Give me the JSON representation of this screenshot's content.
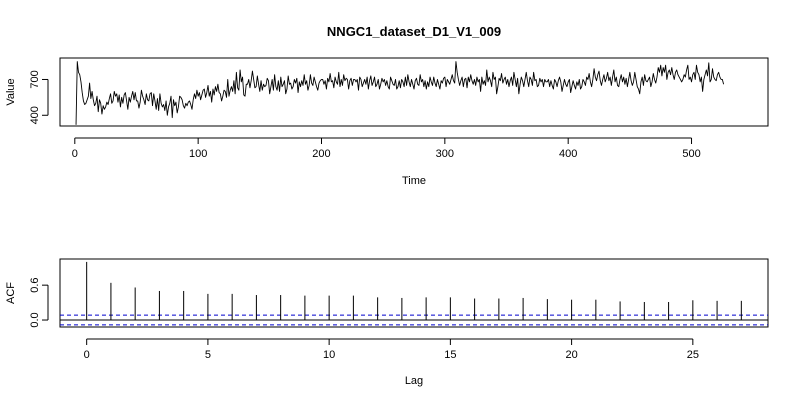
{
  "chart_data": [
    {
      "type": "line",
      "title": "NNGC1_dataset_D1_V1_009",
      "xlabel": "Time",
      "ylabel": "Value",
      "xlim": [
        -12,
        562
      ],
      "ylim": [
        310,
        880
      ],
      "x_ticks": [
        0,
        100,
        200,
        300,
        400,
        500
      ],
      "x_tick_labels": [
        "0",
        "100",
        "200",
        "300",
        "400",
        "500"
      ],
      "y_ticks": [
        400,
        700
      ],
      "y_tick_labels": [
        "400",
        "700"
      ],
      "series": [
        {
          "x_start": 1,
          "x_step": 1,
          "values": [
            320,
            850,
            760,
            740,
            680,
            590,
            520,
            490,
            500,
            530,
            560,
            670,
            540,
            600,
            530,
            480,
            500,
            560,
            430,
            530,
            500,
            410,
            480,
            450,
            470,
            510,
            490,
            540,
            580,
            500,
            520,
            600,
            560,
            580,
            510,
            570,
            470,
            550,
            500,
            570,
            590,
            520,
            450,
            550,
            510,
            560,
            600,
            530,
            590,
            520,
            520,
            460,
            510,
            610,
            560,
            530,
            490,
            580,
            530,
            520,
            580,
            590,
            480,
            580,
            520,
            450,
            540,
            440,
            580,
            500,
            470,
            490,
            440,
            520,
            400,
            470,
            500,
            560,
            380,
            530,
            480,
            510,
            420,
            470,
            560,
            550,
            530,
            480,
            460,
            500,
            480,
            510,
            520,
            490,
            450,
            530,
            580,
            540,
            610,
            560,
            590,
            530,
            570,
            610,
            620,
            550,
            590,
            650,
            560,
            600,
            510,
            620,
            570,
            640,
            600,
            660,
            590,
            580,
            520,
            560,
            610,
            600,
            550,
            700,
            560,
            610,
            640,
            600,
            690,
            580,
            760,
            630,
            610,
            780,
            680,
            720,
            570,
            560,
            660,
            660,
            700,
            630,
            690,
            770,
            700,
            630,
            640,
            730,
            660,
            600,
            690,
            610,
            660,
            640,
            650,
            710,
            690,
            580,
            640,
            700,
            610,
            740,
            640,
            610,
            690,
            600,
            720,
            640,
            660,
            690,
            580,
            620,
            730,
            660,
            670,
            620,
            640,
            700,
            670,
            710,
            590,
            680,
            640,
            690,
            650,
            740,
            660,
            690,
            610,
            650,
            740,
            670,
            650,
            720,
            680,
            640,
            610,
            670,
            690,
            700,
            700,
            660,
            690,
            620,
            710,
            680,
            750,
            680,
            690,
            630,
            720,
            680,
            660,
            760,
            640,
            700,
            650,
            740,
            690,
            710,
            700,
            620,
            690,
            710,
            650,
            700,
            700,
            680,
            700,
            610,
            720,
            700,
            640,
            670,
            700,
            660,
            720,
            620,
            690,
            730,
            650,
            680,
            720,
            640,
            660,
            700,
            620,
            660,
            710,
            680,
            700,
            650,
            690,
            640,
            620,
            720,
            690,
            660,
            650,
            700,
            620,
            640,
            690,
            630,
            700,
            680,
            640,
            720,
            650,
            740,
            680,
            640,
            700,
            660,
            620,
            690,
            710,
            660,
            650,
            740,
            680,
            700,
            640,
            690,
            620,
            680,
            640,
            720,
            680,
            650,
            720,
            670,
            640,
            700,
            660,
            620,
            690,
            670,
            710,
            720,
            640,
            700,
            680,
            660,
            700,
            740,
            690,
            670,
            850,
            760,
            700,
            650,
            690,
            720,
            640,
            700,
            710,
            630,
            720,
            680,
            740,
            690,
            660,
            700,
            650,
            720,
            680,
            700,
            600,
            720,
            660,
            690,
            650,
            780,
            680,
            720,
            690,
            640,
            760,
            700,
            720,
            580,
            640,
            710,
            690,
            750,
            670,
            700,
            720,
            660,
            700,
            640,
            690,
            720,
            650,
            760,
            700,
            640,
            710,
            580,
            660,
            720,
            690,
            640,
            700,
            760,
            690,
            640,
            720,
            700,
            650,
            760,
            690,
            700,
            640,
            650,
            710,
            680,
            700,
            640,
            700,
            680,
            680,
            700,
            640,
            690,
            650,
            620,
            700,
            680,
            640,
            690,
            720,
            680,
            600,
            650,
            700,
            660,
            640,
            680,
            700,
            590,
            640,
            690,
            650,
            620,
            680,
            650,
            700,
            620,
            640,
            700,
            680,
            650,
            720,
            700,
            750,
            680,
            640,
            700,
            790,
            720,
            690,
            740,
            770,
            690,
            650,
            700,
            740,
            680,
            710,
            760,
            690,
            720,
            650,
            720,
            780,
            680,
            720,
            650,
            640,
            700,
            740,
            680,
            720,
            660,
            710,
            640,
            700,
            760,
            690,
            650,
            680,
            760,
            700,
            640,
            620,
            580,
            680,
            720,
            650,
            740,
            690,
            680,
            700,
            720,
            640,
            680,
            750,
            700,
            670,
            720,
            800,
            760,
            820,
            730,
            800,
            760,
            820,
            700,
            760,
            780,
            740,
            800,
            740,
            700,
            760,
            780,
            740,
            720,
            700,
            680,
            700,
            740,
            720,
            780,
            820,
            700,
            720,
            680,
            740,
            760,
            700,
            820,
            760,
            740,
            680,
            720,
            600,
            700,
            740,
            780,
            730,
            840,
            680,
            700,
            790,
            720,
            700,
            690,
            740,
            760,
            720,
            700,
            700,
            660
          ]
        }
      ]
    },
    {
      "type": "bar",
      "xlabel": "Lag",
      "ylabel": "ACF",
      "xlim": [
        -1.1,
        28.1
      ],
      "ylim": [
        -0.12,
        1.05
      ],
      "x_ticks": [
        0,
        5,
        10,
        15,
        20,
        25
      ],
      "x_tick_labels": [
        "0",
        "5",
        "10",
        "15",
        "20",
        "25"
      ],
      "y_ticks": [
        0.0,
        0.6
      ],
      "y_tick_labels": [
        "0.0",
        "0.6"
      ],
      "lags": [
        0,
        1,
        2,
        3,
        4,
        5,
        6,
        7,
        8,
        9,
        10,
        11,
        12,
        13,
        14,
        15,
        16,
        17,
        18,
        19,
        20,
        21,
        22,
        23,
        24,
        25,
        26,
        27
      ],
      "values": [
        1.0,
        0.64,
        0.56,
        0.5,
        0.5,
        0.45,
        0.45,
        0.43,
        0.43,
        0.42,
        0.42,
        0.42,
        0.39,
        0.38,
        0.39,
        0.39,
        0.37,
        0.37,
        0.38,
        0.36,
        0.35,
        0.35,
        0.32,
        0.31,
        0.31,
        0.34,
        0.33,
        0.33
      ],
      "ci": 0.084,
      "ci_color": "#0000cc"
    }
  ]
}
